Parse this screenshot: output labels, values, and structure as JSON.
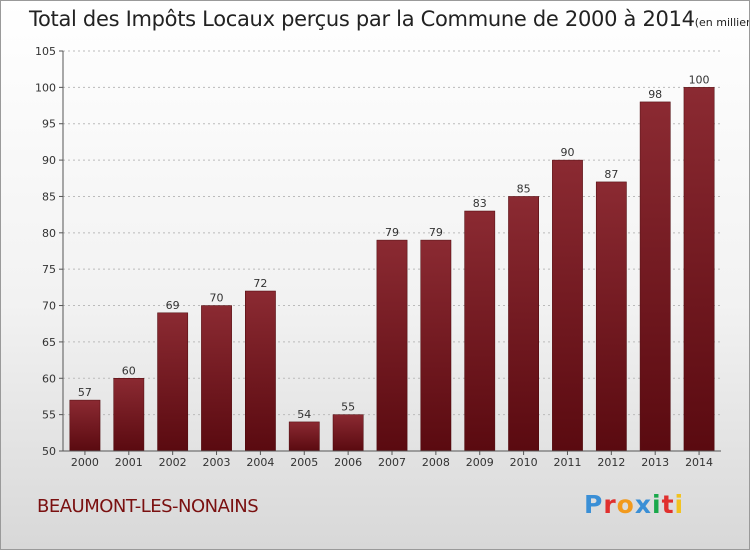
{
  "header": {
    "title": "Total des Impôts Locaux perçus par la Commune de 2000 à 2014",
    "unit": "(en milliers d'€)"
  },
  "footer": {
    "commune": "BEAUMONT-LES-NONAINS",
    "brand_letters": [
      "P",
      "r",
      "o",
      "x",
      "i",
      "t",
      "i"
    ],
    "brand_colors": [
      "#3a8fd6",
      "#e0302e",
      "#f29a1d",
      "#3a8fd6",
      "#1aa84a",
      "#e0302e",
      "#f2c21d"
    ]
  },
  "colors": {
    "bar_top": "#8b2a32",
    "bar_bottom": "#5a0a10",
    "grid": "#bbbbbb"
  },
  "chart_data": {
    "type": "bar",
    "title": "Total des Impôts Locaux perçus par la Commune de 2000 à 2014",
    "ylabel": "en milliers d'€",
    "xlabel": "",
    "categories": [
      "2000",
      "2001",
      "2002",
      "2003",
      "2004",
      "2005",
      "2006",
      "2007",
      "2008",
      "2009",
      "2010",
      "2011",
      "2012",
      "2013",
      "2014"
    ],
    "values": [
      57,
      60,
      69,
      70,
      72,
      54,
      55,
      79,
      79,
      83,
      85,
      90,
      87,
      98,
      100
    ],
    "ylim": [
      50,
      105
    ],
    "yticks": [
      50,
      55,
      60,
      65,
      70,
      75,
      80,
      85,
      90,
      95,
      100,
      105
    ],
    "grid": true
  }
}
